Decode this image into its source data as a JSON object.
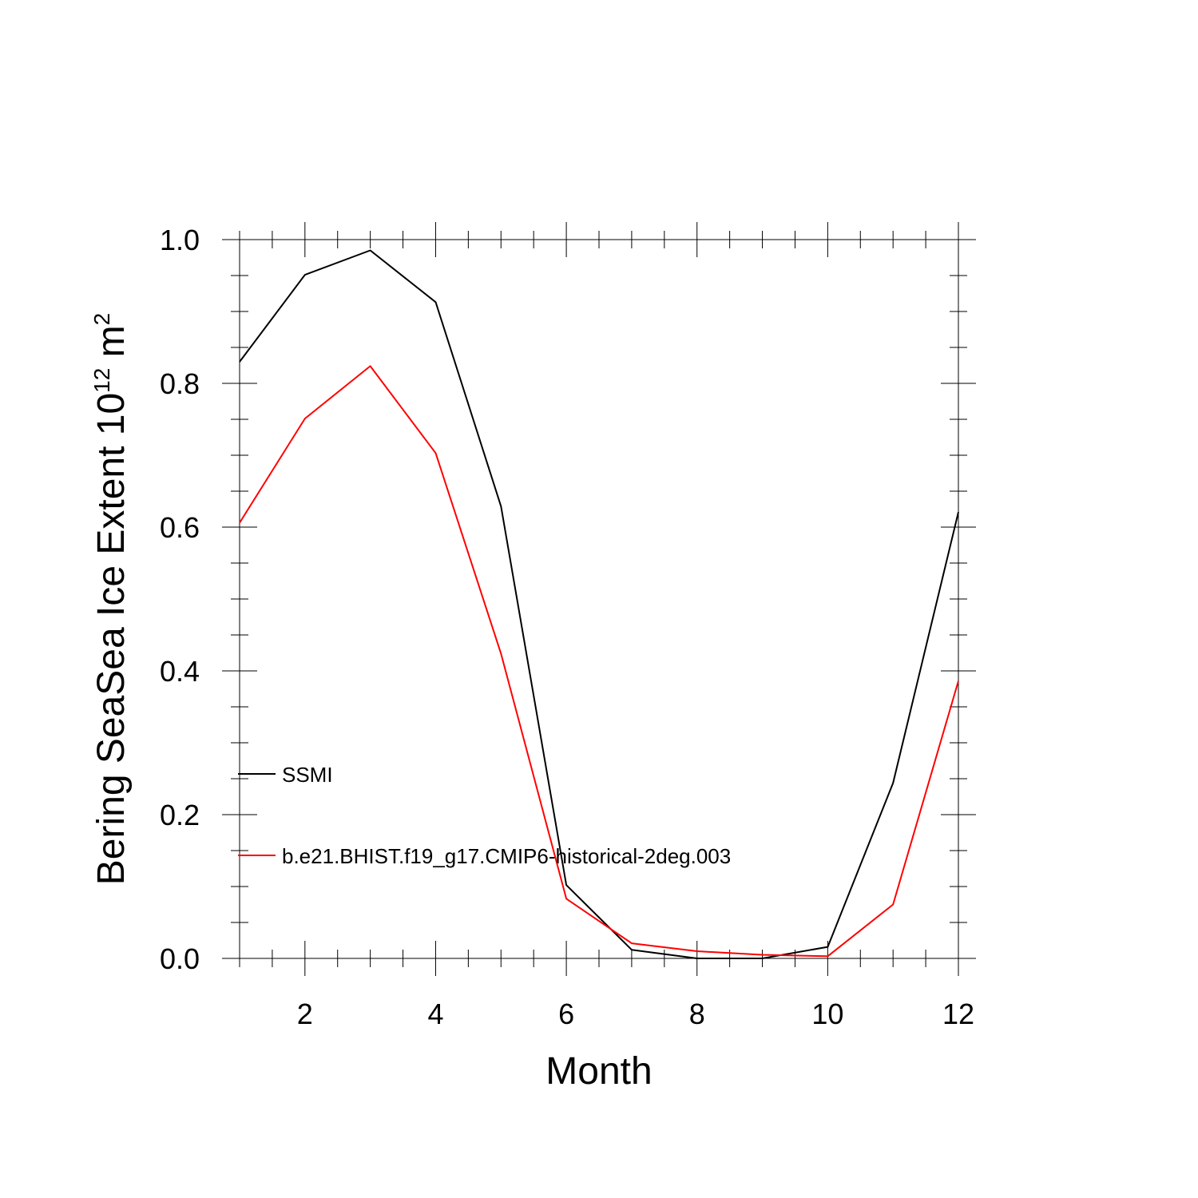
{
  "chart_data": {
    "type": "line",
    "xlabel": "Month",
    "ylabel_main": "Bering SeaSea Ice Extent 10",
    "ylabel_exp": "12",
    "ylabel_unit": " m",
    "ylabel_unit_exp": "2",
    "xlim": [
      1,
      12
    ],
    "ylim": [
      0,
      1.0
    ],
    "x_ticks": [
      2,
      4,
      6,
      8,
      10,
      12
    ],
    "x_tick_labels": [
      "2",
      "4",
      "6",
      "8",
      "10",
      "12"
    ],
    "y_ticks": [
      0,
      0.2,
      0.4,
      0.6,
      0.8,
      1.0
    ],
    "y_tick_labels": [
      "0.0",
      "0.2",
      "0.4",
      "0.6",
      "0.8",
      "1.0"
    ],
    "grid": false,
    "legend_position": "left, lower-middle, inside plot",
    "x": [
      1,
      2,
      3,
      4,
      5,
      6,
      7,
      8,
      9,
      10,
      11,
      12
    ],
    "series": [
      {
        "name": "SSMI",
        "color": "#000000",
        "values": [
          0.83,
          0.951,
          0.985,
          0.913,
          0.629,
          0.102,
          0.012,
          0.0,
          0.0,
          0.016,
          0.244,
          0.621
        ]
      },
      {
        "name": "b.e21.BHIST.f19_g17.CMIP6-historical-2deg.003",
        "color": "#ff0000",
        "values": [
          0.606,
          0.751,
          0.824,
          0.703,
          0.424,
          0.083,
          0.021,
          0.01,
          0.005,
          0.003,
          0.075,
          0.386
        ]
      }
    ]
  }
}
